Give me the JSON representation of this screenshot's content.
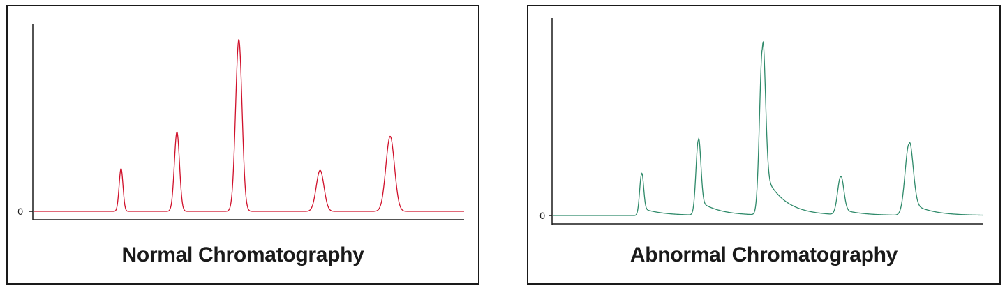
{
  "colors": {
    "normal_trace": "#d0112b",
    "abnormal_trace": "#2f8a6a",
    "axis": "#1a1a1a"
  },
  "chart_data": [
    {
      "type": "line",
      "title": "Normal Chromatography",
      "xlabel": "",
      "ylabel": "",
      "y_tick_labels": [
        "0"
      ],
      "xlim": [
        0,
        100
      ],
      "ylim": [
        0,
        100
      ],
      "baseline": 0,
      "peaks": [
        {
          "x": 20.2,
          "height": 24.5,
          "width": 0.45,
          "tail": 0
        },
        {
          "x": 33.2,
          "height": 45.5,
          "width": 0.6,
          "tail": 0
        },
        {
          "x": 47.6,
          "height": 98.5,
          "width": 0.75,
          "tail": 0
        },
        {
          "x": 66.5,
          "height": 23.5,
          "width": 0.9,
          "tail": 0
        },
        {
          "x": 82.8,
          "height": 43.0,
          "width": 1.0,
          "tail": 0
        }
      ]
    },
    {
      "type": "line",
      "title": "Abnormal Chromatography",
      "xlabel": "",
      "ylabel": "",
      "y_tick_labels": [
        "0"
      ],
      "xlim": [
        0,
        100
      ],
      "ylim": [
        0,
        100
      ],
      "baseline": 0,
      "peaks": [
        {
          "x": 20.5,
          "height": 23.5,
          "width": 0.45,
          "tail": 0.18
        },
        {
          "x": 33.7,
          "height": 42.5,
          "width": 0.55,
          "tail": 0.2
        },
        {
          "x": 48.6,
          "height": 94.5,
          "width": 0.65,
          "tail": 0.28
        },
        {
          "x": 66.8,
          "height": 21.5,
          "width": 0.7,
          "tail": 0.15
        },
        {
          "x": 82.7,
          "height": 40.5,
          "width": 0.9,
          "tail": 0.2
        }
      ]
    }
  ]
}
